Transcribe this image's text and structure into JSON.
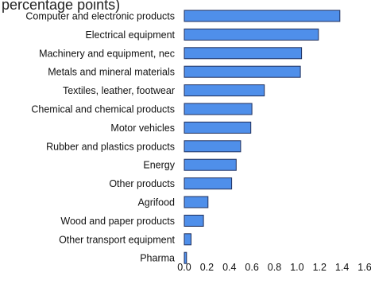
{
  "chart_data": {
    "type": "bar",
    "orientation": "horizontal",
    "title": "percentage points)",
    "categories": [
      "Computer and electronic products",
      "Electrical equipment",
      "Machinery and equipment, nec",
      "Metals and mineral materials",
      "Textiles, leather, footwear",
      "Chemical and chemical products",
      "Motor vehicles",
      "Rubber and plastics products",
      "Energy",
      "Other products",
      "Agrifood",
      "Wood and paper products",
      "Other transport equipment",
      "Pharma"
    ],
    "values": [
      1.38,
      1.19,
      1.04,
      1.03,
      0.71,
      0.6,
      0.59,
      0.5,
      0.46,
      0.42,
      0.21,
      0.17,
      0.06,
      0.02
    ],
    "xlim": [
      0,
      1.6
    ],
    "xticks": [
      "0.0",
      "0.2",
      "0.4",
      "0.6",
      "0.8",
      "1.0",
      "1.2",
      "1.4",
      "1.6"
    ],
    "xlabel": "",
    "ylabel": "",
    "grid": false,
    "bar_color": "#4f8fea",
    "bar_edge_color": "#1f2f5c"
  }
}
